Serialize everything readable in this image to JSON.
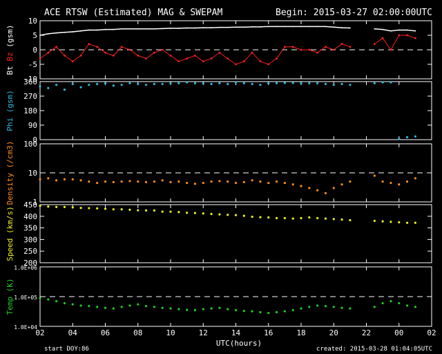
{
  "header": {
    "title": "ACE RTSW (Estimated) MAG & SWEPAM",
    "begin": "Begin: 2015-03-27 02:00:00UTC"
  },
  "footer": {
    "start_doy_label": "start DOY:",
    "start_doy_value": "86",
    "created": "created: 2015-03-28 01:04:05UTC",
    "xlabel": "UTC(hours)"
  },
  "colors": {
    "bt": "#ffffff",
    "bz": "#ff2020",
    "phi": "#30b8e0",
    "density": "#ff8c20",
    "speed": "#f0f020",
    "temp": "#20d020",
    "frame": "#ffffff",
    "background": "#000000"
  },
  "chart_data": [
    {
      "type": "line",
      "panel": "mag",
      "ylabel_parts": [
        "Bt",
        "Bz",
        "(gsm)"
      ],
      "ylim": [
        -10,
        10
      ],
      "yticks": [
        -10,
        -5,
        0,
        5,
        10
      ],
      "ytick_labels": [
        "-10",
        "-5",
        "0",
        "5",
        "10"
      ],
      "ref_line": 0,
      "series": [
        {
          "name": "Bt",
          "x": [
            0,
            0.5,
            1,
            1.5,
            2,
            2.5,
            3,
            3.5,
            4,
            4.5,
            5,
            5.5,
            6,
            6.5,
            7,
            7.5,
            8,
            8.5,
            9,
            9.5,
            10,
            10.5,
            11,
            11.5,
            12,
            12.5,
            13,
            13.5,
            14,
            14.5,
            15,
            15.5,
            16,
            16.5,
            17,
            17.5,
            18,
            18.5,
            19,
            20,
            20.5,
            21,
            21.5,
            22,
            22.5,
            23
          ],
          "y": [
            5,
            5.5,
            5.8,
            6,
            6.2,
            6.5,
            6.8,
            6.8,
            7,
            7,
            7.2,
            7.2,
            7.2,
            7.2,
            7.2,
            7.3,
            7.4,
            7.4,
            7.5,
            7.5,
            7.6,
            7.6,
            7.7,
            7.7,
            7.8,
            7.8,
            7.9,
            7.9,
            8,
            8,
            8,
            8,
            8,
            8,
            8,
            8,
            7.8,
            7.6,
            7.5,
            7.5,
            7.2,
            7,
            6.5,
            6.8,
            6.8,
            6.5
          ]
        },
        {
          "name": "Bz",
          "x": [
            0,
            0.5,
            1,
            1.5,
            2,
            2.5,
            3,
            3.5,
            4,
            4.5,
            5,
            5.5,
            6,
            6.5,
            7,
            7.5,
            8,
            8.5,
            9,
            9.5,
            10,
            10.5,
            11,
            11.5,
            12,
            12.5,
            13,
            13.5,
            14,
            14.5,
            15,
            15.5,
            16,
            16.5,
            17,
            17.5,
            18,
            18.5,
            19,
            20,
            20.5,
            21,
            21.5,
            22,
            22.5,
            23
          ],
          "y": [
            -3,
            -1,
            1,
            -2,
            -4,
            -2,
            2,
            1,
            -1,
            -2,
            1,
            0,
            -2,
            -3,
            -1,
            0,
            -2,
            -4,
            -3,
            -2,
            -4,
            -3,
            -1,
            -3,
            -5,
            -4,
            -1,
            -4,
            -5,
            -3,
            1,
            1,
            0,
            0,
            -1,
            1,
            0,
            2,
            1,
            -1,
            2,
            4,
            0,
            5,
            5,
            4
          ]
        }
      ]
    },
    {
      "type": "scatter",
      "panel": "phi",
      "ylabel": "Phi (gsm)",
      "ylim": [
        0,
        360
      ],
      "yticks": [
        0,
        90,
        180,
        270,
        360
      ],
      "ytick_labels": [
        "0",
        "90",
        "180",
        "270",
        "360"
      ],
      "series": [
        {
          "name": "Phi",
          "x": [
            0,
            0.5,
            1,
            1.5,
            2,
            2.5,
            3,
            3.5,
            4,
            4.5,
            5,
            5.5,
            6,
            6.5,
            7,
            7.5,
            8,
            8.5,
            9,
            9.5,
            10,
            10.5,
            11,
            11.5,
            12,
            12.5,
            13,
            13.5,
            14,
            14.5,
            15,
            15.5,
            16,
            16.5,
            17,
            17.5,
            18,
            18.5,
            19,
            20,
            20.5,
            21,
            21.5,
            22,
            22.5,
            23
          ],
          "y": [
            330,
            320,
            340,
            310,
            345,
            325,
            340,
            345,
            350,
            335,
            340,
            350,
            345,
            340,
            345,
            345,
            350,
            350,
            355,
            350,
            350,
            345,
            350,
            345,
            355,
            350,
            345,
            340,
            350,
            350,
            352,
            352,
            350,
            350,
            350,
            345,
            340,
            345,
            340,
            340,
            350,
            355,
            355,
            5,
            15,
            20
          ]
        }
      ]
    },
    {
      "type": "scatter",
      "panel": "density",
      "ylabel": "Density (/cm3)",
      "yscale": "log",
      "ylim": [
        1,
        100
      ],
      "yticks": [
        1,
        10,
        100
      ],
      "ytick_labels": [
        "1",
        "10",
        "100"
      ],
      "ref_line": 10,
      "series": [
        {
          "name": "Density",
          "x": [
            0,
            0.5,
            1,
            1.5,
            2,
            2.5,
            3,
            3.5,
            4,
            4.5,
            5,
            5.5,
            6,
            6.5,
            7,
            7.5,
            8,
            8.5,
            9,
            9.5,
            10,
            10.5,
            11,
            11.5,
            12,
            12.5,
            13,
            13.5,
            14,
            14.5,
            15,
            15.5,
            16,
            16.5,
            17,
            17.5,
            18,
            18.5,
            19,
            20,
            20.5,
            21,
            21.5,
            22,
            22.5,
            23
          ],
          "y": [
            6,
            6.5,
            5.5,
            6,
            6,
            5.5,
            5,
            4.5,
            5,
            4.8,
            5,
            5.2,
            5,
            4.8,
            5,
            5.5,
            4.8,
            5,
            4.5,
            4.2,
            4.5,
            5,
            5.2,
            5,
            4.5,
            4.8,
            5.5,
            5,
            4.5,
            5,
            4.5,
            4,
            3.5,
            3,
            2.5,
            2,
            3,
            4,
            5,
            7,
            8,
            5,
            4.5,
            4,
            5,
            6.5
          ]
        }
      ]
    },
    {
      "type": "scatter",
      "panel": "speed",
      "ylabel": "Speed (km/s)",
      "ylim": [
        200,
        450
      ],
      "yticks": [
        200,
        250,
        300,
        350,
        400,
        450
      ],
      "ytick_labels": [
        "200",
        "250",
        "300",
        "350",
        "400",
        "450"
      ],
      "series": [
        {
          "name": "Speed",
          "x": [
            0,
            0.5,
            1,
            1.5,
            2,
            2.5,
            3,
            3.5,
            4,
            4.5,
            5,
            5.5,
            6,
            6.5,
            7,
            7.5,
            8,
            8.5,
            9,
            9.5,
            10,
            10.5,
            11,
            11.5,
            12,
            12.5,
            13,
            13.5,
            14,
            14.5,
            15,
            15.5,
            16,
            16.5,
            17,
            17.5,
            18,
            18.5,
            19,
            20,
            20.5,
            21,
            21.5,
            22,
            22.5,
            23
          ],
          "y": [
            445,
            442,
            440,
            440,
            438,
            436,
            435,
            434,
            432,
            430,
            430,
            428,
            426,
            425,
            425,
            420,
            420,
            418,
            415,
            414,
            412,
            410,
            408,
            406,
            405,
            402,
            398,
            396,
            395,
            392,
            392,
            390,
            392,
            395,
            392,
            390,
            388,
            386,
            383,
            380,
            380,
            378,
            376,
            374,
            372,
            372
          ]
        }
      ]
    },
    {
      "type": "scatter",
      "panel": "temp",
      "ylabel": "Temp (K)",
      "yscale": "log",
      "ylim": [
        10000,
        1000000
      ],
      "yticks": [
        10000,
        100000,
        1000000
      ],
      "ytick_labels": [
        "1.0E+04",
        "1.0E+05",
        "1.0E+06"
      ],
      "ref_line": 100000,
      "series": [
        {
          "name": "Temp",
          "x": [
            0,
            0.5,
            1,
            1.5,
            2,
            2.5,
            3,
            3.5,
            4,
            4.5,
            5,
            5.5,
            6,
            6.5,
            7,
            7.5,
            8,
            8.5,
            9,
            9.5,
            10,
            10.5,
            11,
            11.5,
            12,
            12.5,
            13,
            13.5,
            14,
            14.5,
            15,
            15.5,
            16,
            16.5,
            17,
            17.5,
            18,
            18.5,
            19,
            20,
            20.5,
            21,
            21.5,
            22,
            22.5,
            23
          ],
          "y": [
            90000,
            80000,
            70000,
            60000,
            55000,
            50000,
            48000,
            45000,
            42000,
            40000,
            45000,
            50000,
            55000,
            48000,
            45000,
            42000,
            40000,
            38000,
            36000,
            35000,
            38000,
            40000,
            42000,
            38000,
            35000,
            33000,
            32000,
            30000,
            28000,
            30000,
            32000,
            35000,
            40000,
            45000,
            50000,
            48000,
            45000,
            42000,
            40000,
            42000,
            45000,
            60000,
            70000,
            60000,
            50000,
            45000
          ]
        }
      ]
    },
    {
      "type": "axis",
      "panel": "time-axis",
      "xlabel": "UTC(hours)",
      "xlim": [
        0,
        24
      ],
      "xticks": [
        0,
        2,
        4,
        6,
        8,
        10,
        12,
        14,
        16,
        18,
        20,
        22,
        24
      ],
      "xtick_labels": [
        "02",
        "04",
        "06",
        "08",
        "10",
        "12",
        "14",
        "16",
        "18",
        "20",
        "22",
        "00",
        "02"
      ],
      "gaps": [
        [
          19.0,
          20.4
        ]
      ]
    }
  ]
}
